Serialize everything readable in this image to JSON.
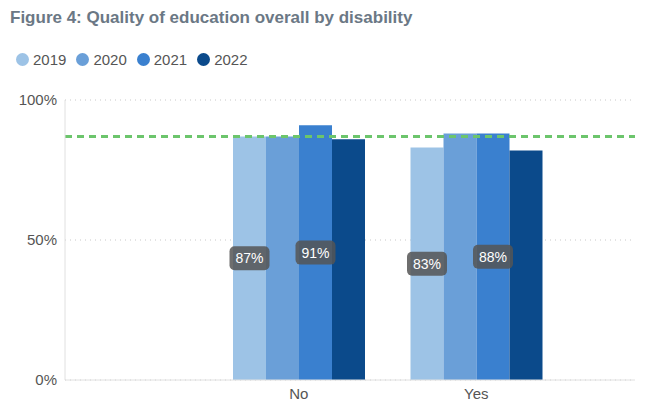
{
  "chart_data": {
    "type": "bar",
    "title": "Figure 4: Quality of education overall by disability",
    "categories": [
      "No",
      "Yes"
    ],
    "series": [
      {
        "name": "2019",
        "color": "#9dc3e6",
        "values": [
          87,
          83
        ],
        "data_labels": true,
        "value_labels": [
          "87%",
          "83%"
        ]
      },
      {
        "name": "2020",
        "color": "#6a9fd8",
        "values": [
          87,
          88
        ],
        "data_labels": false
      },
      {
        "name": "2021",
        "color": "#3a80cf",
        "values": [
          91,
          88
        ],
        "data_labels": true,
        "value_labels": [
          "91%",
          "88%"
        ]
      },
      {
        "name": "2022",
        "color": "#0b4a8b",
        "values": [
          86,
          82
        ],
        "data_labels": false
      }
    ],
    "ylim": [
      0,
      100
    ],
    "yticks": [
      {
        "value": 0,
        "label": "0%"
      },
      {
        "value": 50,
        "label": "50%"
      },
      {
        "value": 100,
        "label": "100%"
      }
    ],
    "grid": true,
    "legend": "top-left",
    "reference_line": {
      "value": 87,
      "color": "#6cc56c"
    }
  }
}
